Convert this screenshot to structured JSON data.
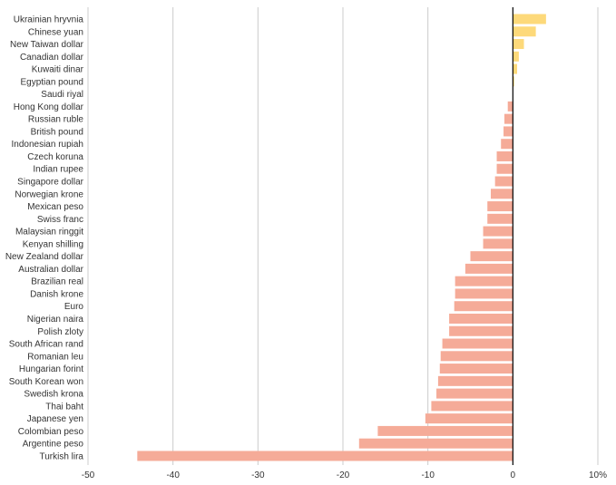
{
  "chart_data": {
    "type": "bar",
    "orientation": "horizontal",
    "title": "",
    "xlabel": "",
    "ylabel": "",
    "xlim": [
      -50,
      10
    ],
    "grid": true,
    "x_ticks": [
      -50,
      -40,
      -30,
      -20,
      -10,
      0,
      10
    ],
    "x_tick_labels": [
      "-50",
      "-40",
      "-30",
      "-20",
      "-10",
      "0",
      "10%"
    ],
    "colors": {
      "positive": "#fdd97a",
      "negative": "#f5ab98",
      "zero_line": "#000000",
      "grid": "#cccccc"
    },
    "categories": [
      "Ukrainian hryvnia",
      "Chinese yuan",
      "New Taiwan dollar",
      "Canadian dollar",
      "Kuwaiti dinar",
      "Egyptian pound",
      "Saudi riyal",
      "Hong Kong dollar",
      "Russian ruble",
      "British pound",
      "Indonesian rupiah",
      "Czech koruna",
      "Indian rupee",
      "Singapore dollar",
      "Norwegian krone",
      "Mexican peso",
      "Swiss franc",
      "Malaysian ringgit",
      "Kenyan shilling",
      "New Zealand dollar",
      "Australian dollar",
      "Brazilian real",
      "Danish krone",
      "Euro",
      "Nigerian naira",
      "Polish zloty",
      "South African rand",
      "Romanian leu",
      "Hungarian forint",
      "South Korean won",
      "Swedish krona",
      "Thai baht",
      "Japanese yen",
      "Colombian peso",
      "Argentine peso",
      "Turkish lira"
    ],
    "values": [
      3.9,
      2.7,
      1.3,
      0.7,
      0.5,
      0.15,
      0.0,
      -0.6,
      -1.0,
      -1.1,
      -1.4,
      -1.9,
      -1.9,
      -2.1,
      -2.6,
      -3.0,
      -3.0,
      -3.5,
      -3.5,
      -5.0,
      -5.6,
      -6.8,
      -6.8,
      -6.9,
      -7.5,
      -7.5,
      -8.3,
      -8.5,
      -8.6,
      -8.8,
      -9.0,
      -9.6,
      -10.3,
      -15.9,
      -18.1,
      -44.2
    ]
  }
}
